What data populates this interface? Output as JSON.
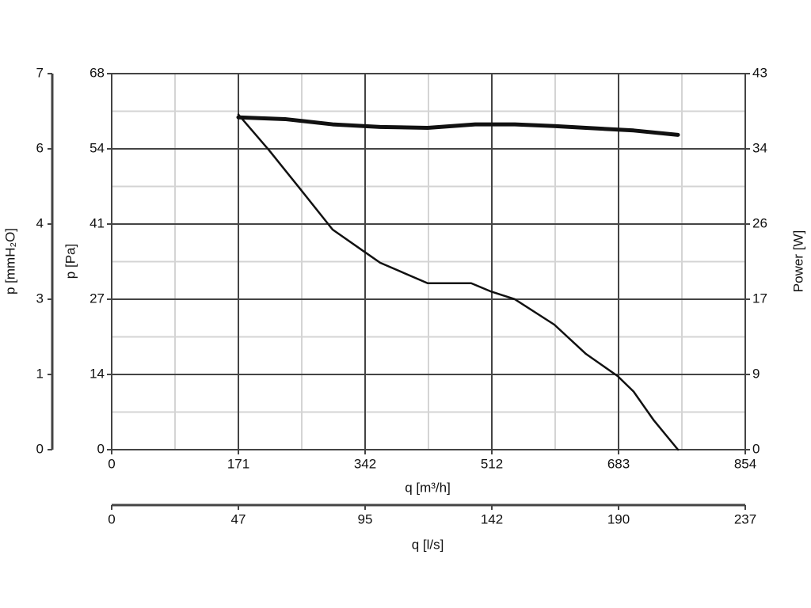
{
  "chart_data": {
    "type": "line",
    "xlabel": "q [m³/h]",
    "xlim": [
      0,
      854
    ],
    "xticks": [
      0,
      {
        "value": 170.8,
        "label": "171"
      },
      {
        "value": 341.6,
        "label": "342"
      },
      {
        "value": 512.4,
        "label": "512"
      },
      {
        "value": 683.2,
        "label": "683"
      },
      854
    ],
    "ylabel": "p [Pa]",
    "ylim": [
      0,
      68
    ],
    "yticks": [
      0,
      {
        "value": 13.6,
        "label": "14"
      },
      {
        "value": 27.2,
        "label": "27"
      },
      {
        "value": 40.8,
        "label": "41"
      },
      {
        "value": 54.4,
        "label": "54"
      },
      68
    ],
    "y2label": "Power [W]",
    "y2lim": [
      0,
      43
    ],
    "y2ticks": [
      0,
      {
        "value": 8.6,
        "label": "9"
      },
      {
        "value": 17.2,
        "label": "17"
      },
      {
        "value": 25.8,
        "label": "26"
      },
      {
        "value": 34.4,
        "label": "34"
      },
      43
    ],
    "y3label": "p [mmH₂O]",
    "y3lim": [
      0,
      7
    ],
    "y3ticks": [
      0,
      {
        "value": 1.4,
        "label": "1"
      },
      {
        "value": 2.8,
        "label": "3"
      },
      {
        "value": 4.2,
        "label": "4"
      },
      {
        "value": 5.6,
        "label": "6"
      },
      7
    ],
    "x2label": "q [l/s]",
    "x2lim": [
      0,
      237
    ],
    "x2ticks": [
      0,
      {
        "value": 47.4,
        "label": "47"
      },
      {
        "value": 94.8,
        "label": "95"
      },
      {
        "value": 142.2,
        "label": "142"
      },
      {
        "value": 189.6,
        "label": "190"
      },
      237
    ],
    "grid": true,
    "minor_grid": true,
    "series": [
      {
        "color": "#111111",
        "width": 2.5,
        "axis": "y",
        "x": [
          170.8,
          212.4,
          255,
          297.8,
          340.5,
          361.9,
          425.9,
          484.6,
          511.3,
          543.4,
          596.7,
          639.4,
          682.1,
          703.5,
          730.2,
          763.3
        ],
        "values": [
          60.6,
          54.1,
          47.0,
          39.8,
          35.8,
          33.8,
          30.1,
          30.1,
          28.6,
          27.2,
          22.6,
          17.3,
          13.3,
          10.5,
          5.4,
          0
        ]
      },
      {
        "color": "#111111",
        "width": 5,
        "axis": "y2",
        "x": [
          170.8,
          233.7,
          297.8,
          361.9,
          425.9,
          490,
          543.4,
          596.7,
          639.4,
          703.5,
          763.3
        ],
        "values": [
          38.0,
          37.8,
          37.2,
          36.9,
          36.8,
          37.2,
          37.2,
          37.0,
          36.8,
          36.5,
          36.0
        ]
      }
    ]
  }
}
